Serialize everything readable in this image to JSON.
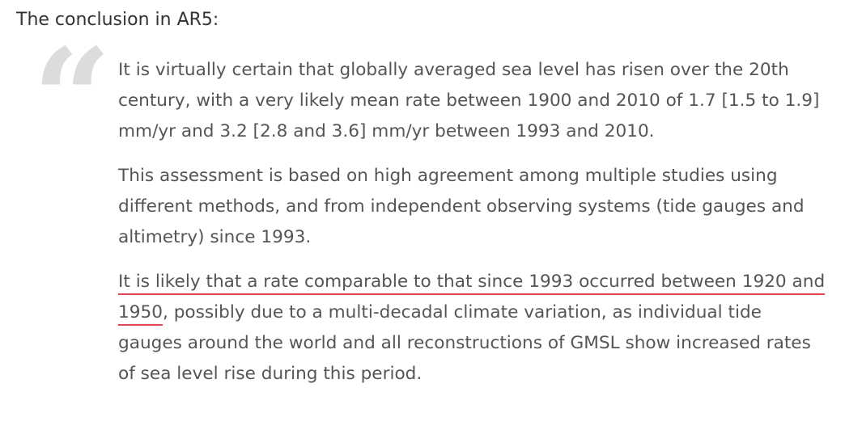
{
  "intro": "The conclusion in AR5:",
  "quote": {
    "paragraphs": [
      "It is virtually certain that globally averaged sea level has risen over the 20th century, with a very likely mean rate between 1900 and 2010 of 1.7 [1.5 to 1.9] mm/yr and 3.2 [2.8 and 3.6] mm/yr between 1993 and 2010.",
      "This assessment is based on high agreement among multiple studies using different methods, and from independent observing systems (tide gauges and altimetry) since 1993."
    ],
    "highlighted": {
      "underlined": "It is likely that a rate comparable to that since 1993 occurred between 1920 and 1950",
      "rest": ", possibly due to a multi-decadal climate variation, as individual tide gauges around the world and all reconstructions of GMSL show increased rates of sea level rise during this period."
    }
  }
}
